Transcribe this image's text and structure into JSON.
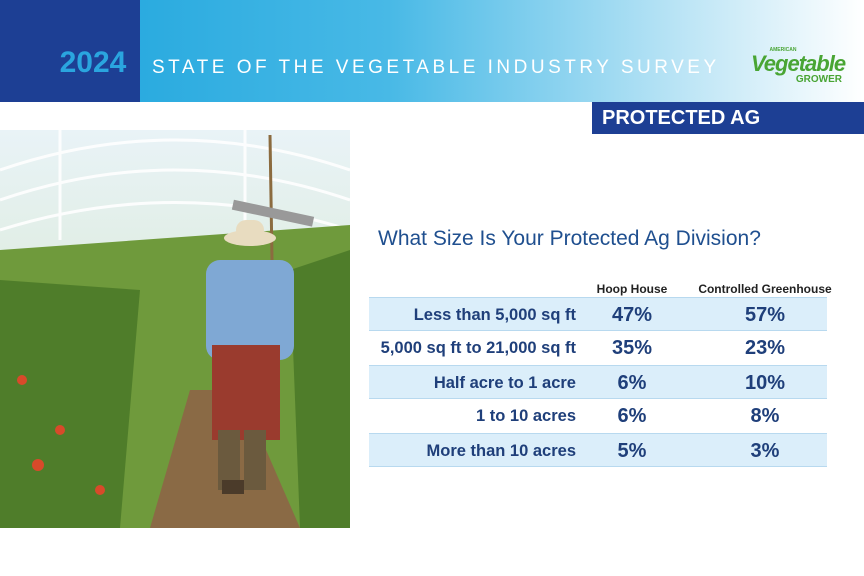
{
  "header": {
    "year": "2024",
    "title": "STATE OF THE VEGETABLE INDUSTRY SURVEY",
    "logo": {
      "top": "AMERICAN",
      "main": "Vegetable",
      "bottom": "GROWER"
    }
  },
  "section": "PROTECTED AG",
  "question": "What Size Is Your Protected Ag Division?",
  "table": {
    "columns": [
      "Hoop House",
      "Controlled Greenhouse"
    ],
    "rows": [
      {
        "label": "Less than 5,000 sq ft",
        "values": [
          "47%",
          "57%"
        ]
      },
      {
        "label": "5,000 sq ft to 21,000 sq ft",
        "values": [
          "35%",
          "23%"
        ]
      },
      {
        "label": "Half acre to 1 acre",
        "values": [
          "6%",
          "10%"
        ]
      },
      {
        "label": "1 to 10 acres",
        "values": [
          "6%",
          "8%"
        ]
      },
      {
        "label": "More than 10 acres",
        "values": [
          "5%",
          "3%"
        ]
      }
    ]
  }
}
